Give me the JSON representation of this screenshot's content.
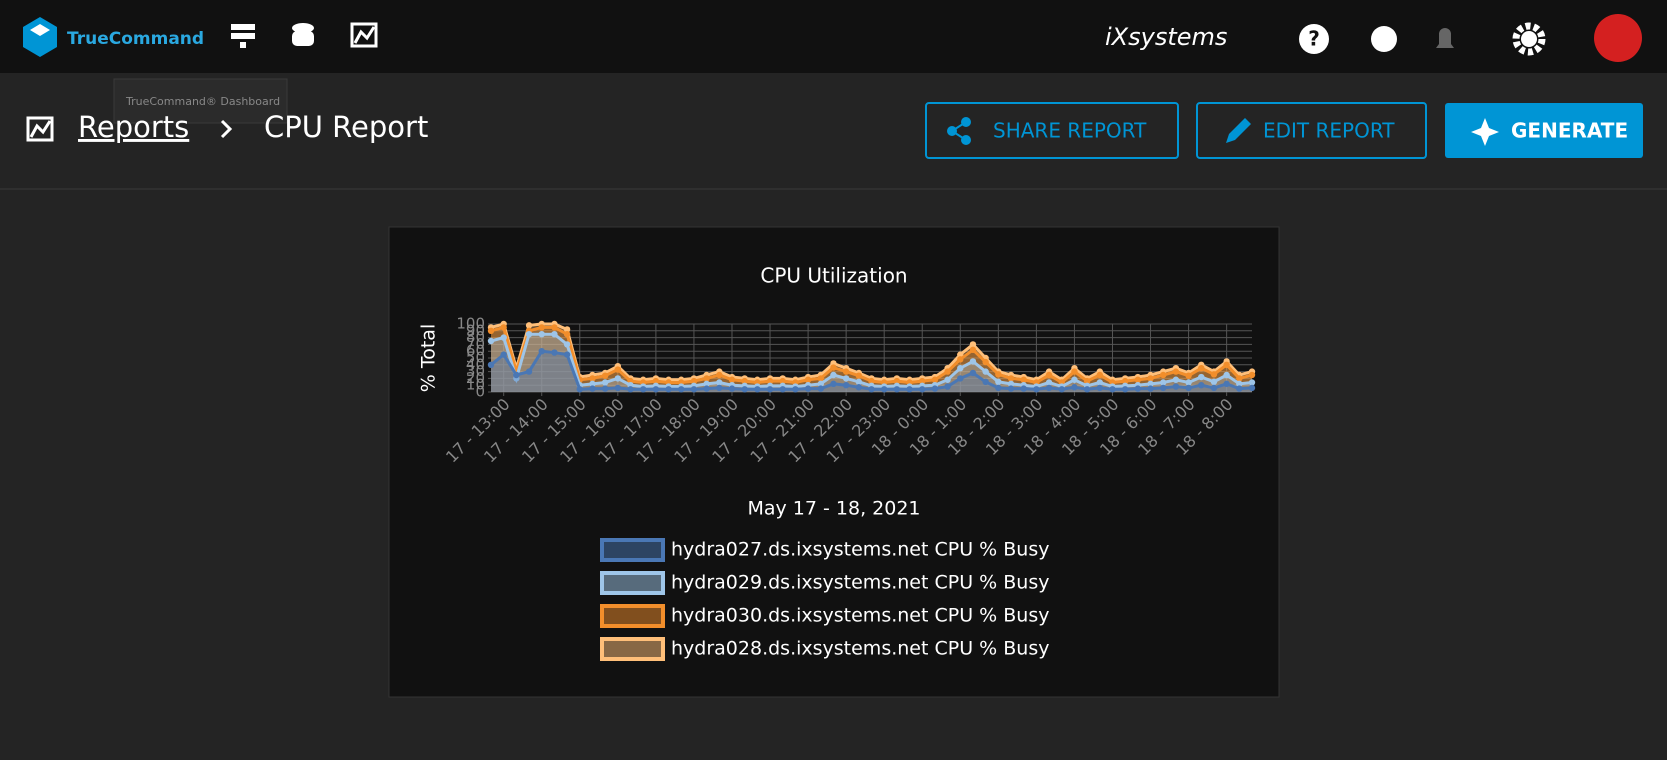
{
  "header": {
    "brand": "TrueCommand",
    "vendor": "iXsystems",
    "tooltip": "TrueCommand® Dashboard"
  },
  "breadcrumb": {
    "parent": "Reports",
    "current": "CPU Report"
  },
  "actions": [
    "SHARE REPORT",
    "EDIT REPORT",
    "GENERATE"
  ],
  "chart_data": {
    "type": "line",
    "title": "CPU Utilization",
    "y_label": "% Total",
    "x_label": "May 17 - 18, 2021",
    "ylim": [
      0,
      100
    ],
    "yticks": [
      0,
      10,
      20,
      30,
      40,
      50,
      60,
      70,
      80,
      90,
      100
    ],
    "grid": true,
    "legend": "bottom",
    "categories": [
      null,
      "17 - 13:00",
      null,
      null,
      "17 - 14:00",
      null,
      null,
      "17 - 15:00",
      null,
      null,
      "17 - 16:00",
      null,
      null,
      "17 - 17:00",
      null,
      null,
      "17 - 18:00",
      null,
      null,
      "17 - 19:00",
      null,
      null,
      "17 - 20:00",
      null,
      null,
      "17 - 21:00",
      null,
      null,
      "17 - 22:00",
      null,
      null,
      "17 - 23:00",
      null,
      null,
      "18 - 0:00",
      null,
      null,
      "18 - 1:00",
      null,
      null,
      "18 - 2:00",
      null,
      null,
      "18 - 3:00",
      null,
      null,
      "18 - 4:00",
      null,
      null,
      "18 - 5:00",
      null,
      null,
      "18 - 6:00",
      null,
      null,
      "18 - 7:00",
      null,
      null,
      "18 - 8:00",
      null,
      null
    ],
    "series": [
      {
        "name": "hydra027.ds.ixsystems.net CPU % Busy",
        "color": "#4a77b4",
        "values": [
          40,
          55,
          25,
          30,
          60,
          58,
          55,
          4,
          5,
          5,
          6,
          4,
          4,
          4,
          4,
          4,
          4,
          5,
          6,
          5,
          4,
          4,
          4,
          4,
          4,
          5,
          5,
          12,
          10,
          7,
          4,
          4,
          4,
          4,
          4,
          5,
          8,
          20,
          28,
          15,
          6,
          5,
          5,
          4,
          6,
          4,
          7,
          4,
          6,
          4,
          4,
          5,
          5,
          6,
          8,
          6,
          10,
          6,
          12,
          5,
          6
        ]
      },
      {
        "name": "hydra029.ds.ixsystems.net CPU % Busy",
        "color": "#9ec5e8",
        "values": [
          75,
          80,
          20,
          85,
          85,
          85,
          70,
          10,
          12,
          14,
          20,
          10,
          8,
          9,
          8,
          8,
          9,
          12,
          14,
          10,
          9,
          8,
          9,
          9,
          8,
          10,
          12,
          25,
          20,
          15,
          9,
          8,
          9,
          8,
          9,
          10,
          18,
          35,
          45,
          30,
          15,
          12,
          10,
          8,
          14,
          8,
          18,
          9,
          14,
          8,
          9,
          10,
          12,
          14,
          18,
          14,
          22,
          15,
          25,
          12,
          14
        ]
      },
      {
        "name": "hydra030.ds.ixsystems.net CPU % Busy",
        "color": "#f28e2b",
        "values": [
          90,
          95,
          30,
          90,
          95,
          95,
          85,
          18,
          20,
          24,
          33,
          16,
          14,
          16,
          14,
          14,
          16,
          20,
          25,
          18,
          16,
          14,
          16,
          16,
          14,
          18,
          20,
          36,
          30,
          24,
          16,
          14,
          16,
          14,
          16,
          18,
          30,
          48,
          62,
          44,
          26,
          20,
          18,
          14,
          25,
          14,
          30,
          16,
          25,
          14,
          16,
          18,
          20,
          25,
          30,
          24,
          35,
          26,
          40,
          20,
          25
        ]
      },
      {
        "name": "hydra028.ds.ixsystems.net CPU % Busy",
        "color": "#ffbf79",
        "values": [
          95,
          100,
          35,
          98,
          100,
          100,
          92,
          22,
          25,
          28,
          38,
          20,
          18,
          20,
          18,
          18,
          20,
          25,
          30,
          22,
          20,
          18,
          20,
          20,
          18,
          22,
          25,
          42,
          35,
          28,
          20,
          18,
          20,
          18,
          20,
          22,
          35,
          55,
          70,
          50,
          30,
          25,
          22,
          18,
          30,
          18,
          35,
          20,
          30,
          18,
          20,
          22,
          25,
          30,
          35,
          28,
          40,
          30,
          45,
          25,
          30
        ]
      }
    ]
  }
}
